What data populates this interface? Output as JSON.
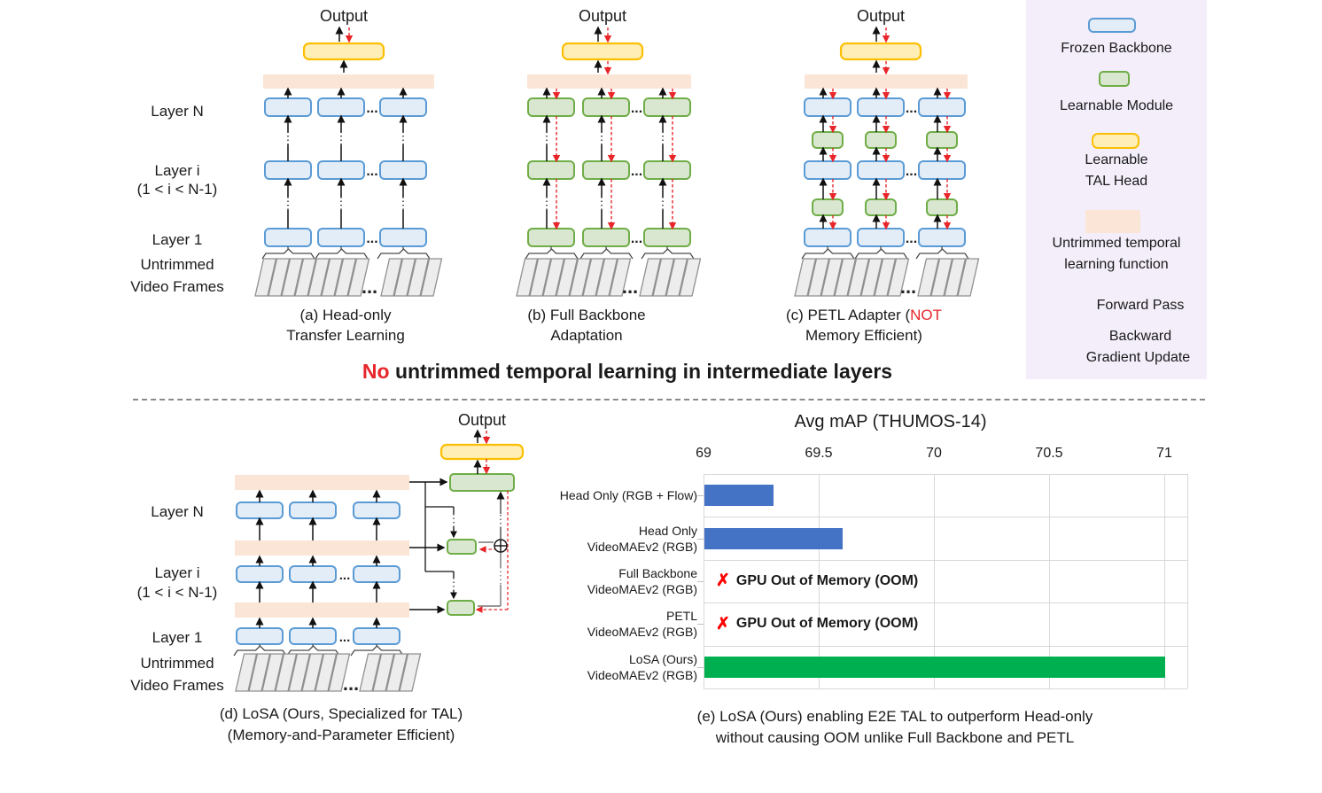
{
  "figure": {
    "output_label": "Output",
    "ellipsis": "...",
    "layer_labels": {
      "layer_n": "Layer N",
      "layer_i": "Layer i",
      "layer_i_range": "(1 < i < N-1)",
      "layer_1": "Layer 1",
      "untrimmed": "Untrimmed",
      "video_frames": "Video Frames"
    },
    "headline": {
      "no": "No",
      "rest": " untrimmed temporal learning in intermediate layers"
    },
    "captions": {
      "a_line1": "(a) Head-only",
      "a_line2": "Transfer Learning",
      "b_line1": "(b) Full Backbone",
      "b_line2": "Adaptation",
      "c_line1_prefix": "(c) PETL Adapter (",
      "c_not": "NOT",
      "c_line2": "Memory Efficient)",
      "d_line1": "(d) LoSA (Ours, Specialized for TAL)",
      "d_line2": "(Memory-and-Parameter Efficient)",
      "e_line1": "(e) LoSA (Ours) enabling E2E TAL to outperform Head-only",
      "e_line2": "without causing OOM unlike Full Backbone and PETL"
    },
    "legend": {
      "frozen_label": "Frozen Backbone",
      "learnable_label": "Learnable Module",
      "tal_head_label1": "Learnable",
      "tal_head_label2": "TAL Head",
      "untrimmed_fn_label1": "Untrimmed temporal",
      "untrimmed_fn_label2": "learning function",
      "forward_label": "Forward Pass",
      "backward_label1": "Backward",
      "backward_label2": "Gradient Update"
    },
    "colors": {
      "frozen_fill": "#e3edf8",
      "frozen_border": "#5b9bd5",
      "learnable_fill": "#d9e7d0",
      "learnable_border": "#6fad47",
      "head_fill": "#ffeeb5",
      "head_border": "#fcbf02",
      "untrimmed_fill": "#fbe5d6",
      "legend_bg": "#f3eefa",
      "frame_fill": "#ededed",
      "frame_border": "#909090",
      "forward_black": "#111111",
      "backward_red": "#e8262a",
      "bar_blue": "#4472c4",
      "bar_green": "#00b050",
      "grid_gray": "#d9d9d9",
      "red": "#ff0000"
    }
  },
  "chart_data": {
    "type": "bar",
    "orientation": "horizontal-bars",
    "title": "Avg mAP (THUMOS-14)",
    "axis_position": "top",
    "x_ticks": [
      69,
      69.5,
      70,
      70.5,
      71
    ],
    "xlim": [
      69,
      71.1
    ],
    "grid": true,
    "categories": [
      [
        "Head Only (RGB + Flow)"
      ],
      [
        "Head Only",
        "VideoMAEv2 (RGB)"
      ],
      [
        "Full Backbone",
        "VideoMAEv2 (RGB)"
      ],
      [
        "PETL",
        "VideoMAEv2 (RGB)"
      ],
      [
        "LoSA (Ours)",
        "VideoMAEv2 (RGB)"
      ]
    ],
    "values": [
      69.3,
      69.6,
      null,
      null,
      71.0
    ],
    "bar_colors": [
      "#4472c4",
      "#4472c4",
      null,
      null,
      "#00b050"
    ],
    "oom_marker": "✗",
    "oom_text": "GPU Out of Memory (OOM)",
    "oom_rows": [
      2,
      3
    ]
  }
}
